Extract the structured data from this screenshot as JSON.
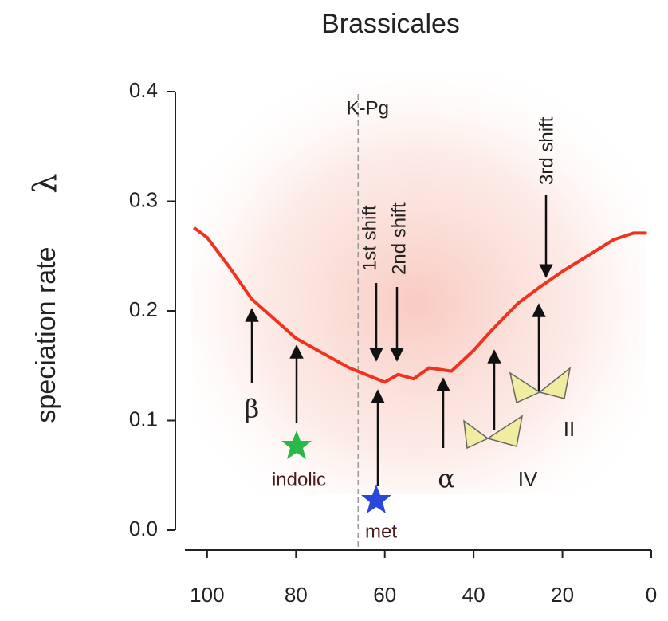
{
  "chart_data": {
    "type": "line",
    "title": "Brassicales",
    "ylabel": "speciation rate",
    "ylabel_symbol": "λ",
    "x": [
      103,
      100,
      95,
      90,
      80,
      68,
      60,
      57,
      53.5,
      50,
      45,
      40,
      36,
      30,
      25,
      20,
      14,
      8.5,
      4,
      1
    ],
    "series": [
      {
        "color": "#f0321e",
        "values": [
          0.276,
          0.267,
          0.24,
          0.211,
          0.175,
          0.148,
          0.135,
          0.142,
          0.138,
          0.148,
          0.145,
          0.164,
          0.182,
          0.207,
          0.222,
          0.236,
          0.251,
          0.265,
          0.271,
          0.271
        ]
      }
    ],
    "xlim": [
      105,
      0
    ],
    "xticks": [
      100,
      80,
      60,
      40,
      20,
      0
    ],
    "ylim": [
      0,
      0.4
    ],
    "yticks": [
      {
        "value": 0,
        "label": "0.0"
      },
      0.1,
      0.2,
      0.3,
      0.4
    ],
    "kpg": {
      "label": "K-Pg",
      "x": 66
    },
    "annotations": [
      "β",
      "indolic",
      "1st shift",
      "2nd shift",
      "met",
      "α",
      "IV",
      "II",
      "3rd shift"
    ]
  }
}
